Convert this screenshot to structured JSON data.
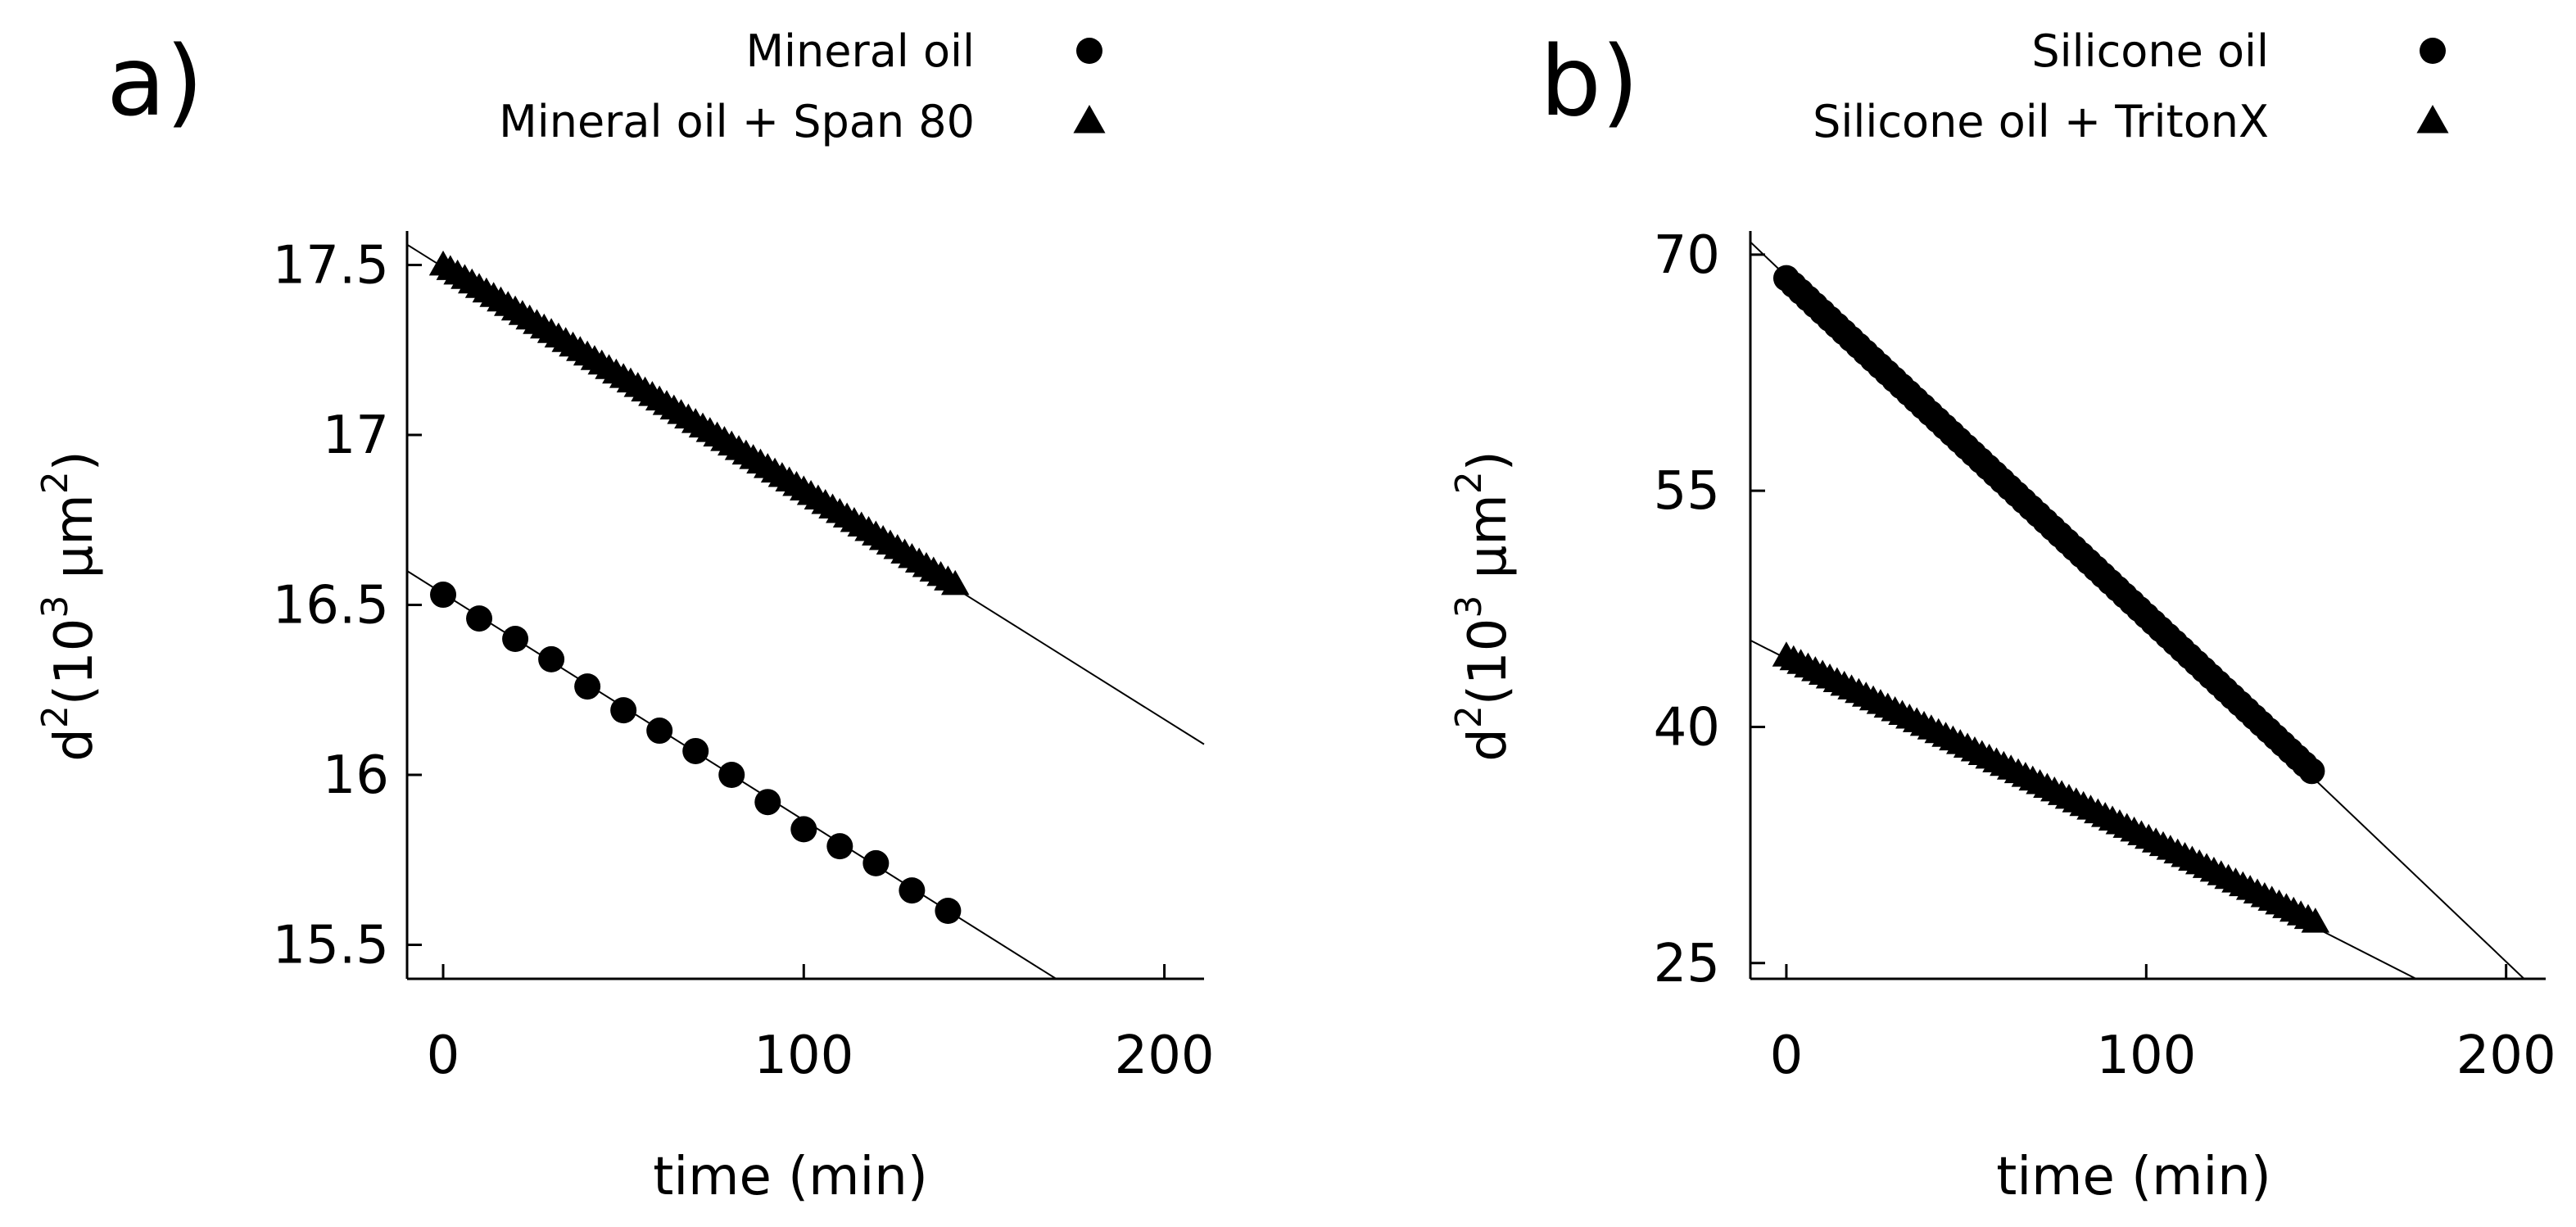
{
  "chart_data": [
    {
      "type": "scatter",
      "panel_label": "a)",
      "xlabel": "time (min)",
      "ylabel": {
        "base": "d",
        "exp1": "2",
        "paren": "(10",
        "exp2": "3",
        "unit": " μm",
        "exp3": "2",
        "close": ")"
      },
      "xlim": [
        -10,
        211
      ],
      "ylim": [
        15.4,
        17.6
      ],
      "xticks": [
        0,
        100,
        200
      ],
      "xtick_labels": [
        "0",
        "100",
        "200"
      ],
      "yticks": [
        15.5,
        16,
        16.5,
        17,
        17.5
      ],
      "ytick_labels": [
        "15.5",
        "16",
        "16.5",
        "17",
        "17.5"
      ],
      "series": [
        {
          "name": "Mineral oil",
          "marker": "circle",
          "x": [
            0,
            10,
            20,
            30,
            40,
            50,
            60,
            70,
            80,
            90,
            100,
            110,
            120,
            130,
            140
          ],
          "y": [
            16.53,
            16.46,
            16.4,
            16.34,
            16.26,
            16.19,
            16.13,
            16.07,
            16.0,
            15.92,
            15.84,
            15.79,
            15.74,
            15.66,
            15.6
          ],
          "fit": {
            "x0": -10,
            "y0": 16.6,
            "x1": 170,
            "y1": 15.4
          }
        },
        {
          "name": "Mineral oil + Span 80",
          "marker": "triangle",
          "x_start": 0,
          "x_end": 142,
          "count": 72,
          "y_start": 17.5,
          "y_end": 16.56,
          "fit": {
            "x0": -10,
            "y0": 17.56,
            "x1": 211,
            "y1": 16.09
          }
        }
      ]
    },
    {
      "type": "scatter",
      "panel_label": "b)",
      "xlabel": "time (min)",
      "ylabel": {
        "base": "d",
        "exp1": "2",
        "paren": "(10",
        "exp2": "3",
        "unit": " μm",
        "exp3": "2",
        "close": ")"
      },
      "xlim": [
        -10,
        211
      ],
      "ylim": [
        24,
        71.5
      ],
      "xticks": [
        0,
        100,
        200
      ],
      "xtick_labels": [
        "0",
        "100",
        "200"
      ],
      "yticks": [
        25,
        40,
        55,
        70
      ],
      "ytick_labels": [
        "25",
        "40",
        "55",
        "70"
      ],
      "series": [
        {
          "name": "Silicone oil",
          "marker": "circle",
          "x_start": 0,
          "x_end": 146,
          "count": 74,
          "y_start": 68.5,
          "y_end": 37.2,
          "fit": {
            "x0": -10,
            "y0": 70.8,
            "x1": 205,
            "y1": 24
          }
        },
        {
          "name": "Silicone oil + TritonX",
          "marker": "triangle",
          "x_start": 0,
          "x_end": 147,
          "count": 74,
          "y_start": 44.5,
          "y_end": 27.6,
          "fit": {
            "x0": -10,
            "y0": 45.5,
            "x1": 175,
            "y1": 24
          }
        }
      ]
    }
  ]
}
